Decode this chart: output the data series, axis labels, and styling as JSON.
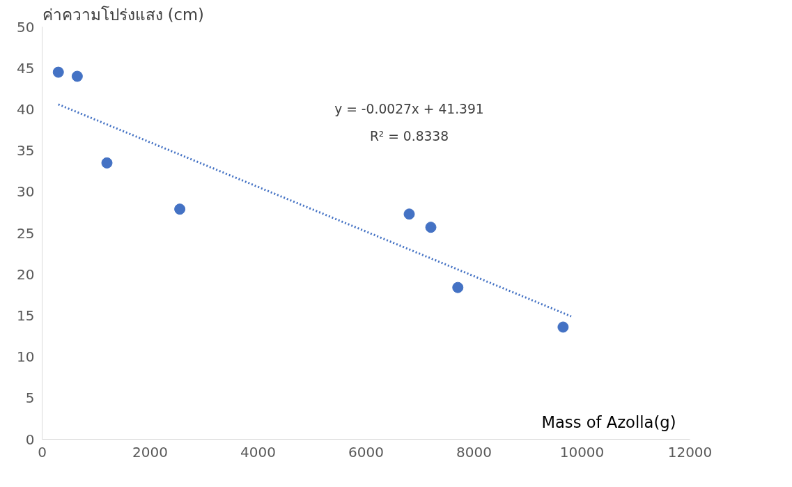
{
  "chart_data": {
    "type": "scatter",
    "xlabel": "Mass of Azolla(g)",
    "ylabel": "ค่าความโปร่งแสง (cm)",
    "x": [
      300,
      650,
      1200,
      2550,
      6800,
      7200,
      7700,
      9650
    ],
    "series": [
      {
        "color": "#4472c4",
        "marker": "circle",
        "values": [
          44.5,
          44.0,
          33.5,
          27.9,
          27.3,
          25.7,
          18.4,
          13.6
        ]
      },
      {
        "type": "line",
        "color": "#4472c4",
        "line_style": "dotted",
        "marker": "none",
        "x": [
          300,
          9800
        ],
        "values": [
          40.6,
          14.9
        ]
      }
    ],
    "annotations": [
      "y = -0.0027x + 41.391",
      "R² = 0.8338"
    ],
    "xlim": [
      0,
      12000
    ],
    "xticks": [
      0,
      2000,
      4000,
      6000,
      8000,
      10000,
      12000
    ],
    "ylim": [
      0,
      50
    ],
    "yticks": [
      0,
      5,
      10,
      15,
      20,
      25,
      30,
      35,
      40,
      45,
      50
    ],
    "grid": false
  }
}
